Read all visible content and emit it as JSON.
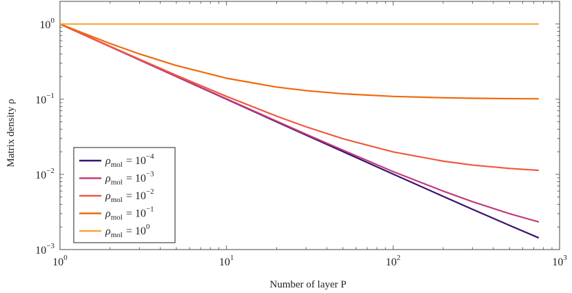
{
  "chart_data": {
    "type": "line",
    "xscale": "log",
    "yscale": "log",
    "xlim": [
      1,
      1000
    ],
    "ylim": [
      0.001,
      2
    ],
    "grid": false,
    "xlabel": "Number of layer P",
    "ylabel": "Matrix density ρ",
    "title": "",
    "x_ticks": [
      {
        "value": 1,
        "base": "10",
        "exp": "0"
      },
      {
        "value": 10,
        "base": "10",
        "exp": "1"
      },
      {
        "value": 100,
        "base": "10",
        "exp": "2"
      },
      {
        "value": 1000,
        "base": "10",
        "exp": "3"
      }
    ],
    "y_ticks": [
      {
        "value": 1,
        "base": "10",
        "exp": "0"
      },
      {
        "value": 0.1,
        "base": "10",
        "exp": "−1"
      },
      {
        "value": 0.01,
        "base": "10",
        "exp": "−2"
      },
      {
        "value": 0.001,
        "base": "10",
        "exp": "−3"
      }
    ],
    "legend_position": "bottom-left",
    "series": [
      {
        "name": "ρmol = 10^−4",
        "label_symbol": "ρ",
        "label_sub": "mol",
        "label_rhs": "= 10",
        "label_exp": "−4",
        "rho_mol": 0.0001,
        "color": "#3b0f70",
        "x": [
          1,
          2,
          3,
          5,
          10,
          20,
          30,
          50,
          100,
          200,
          300,
          500,
          750
        ],
        "y": [
          1,
          0.5,
          0.333,
          0.2,
          0.1,
          0.05,
          0.0334,
          0.0201,
          0.0101,
          0.0051,
          0.00343,
          0.0021,
          0.00143
        ]
      },
      {
        "name": "ρmol = 10^−3",
        "label_symbol": "ρ",
        "label_sub": "mol",
        "label_rhs": "= 10",
        "label_exp": "−3",
        "rho_mol": 0.001,
        "color": "#c33c7a",
        "x": [
          1,
          2,
          3,
          5,
          10,
          20,
          30,
          50,
          100,
          200,
          300,
          500,
          750
        ],
        "y": [
          1,
          0.5,
          0.334,
          0.201,
          0.101,
          0.051,
          0.0343,
          0.021,
          0.0109,
          0.00599,
          0.00433,
          0.003,
          0.00233
        ]
      },
      {
        "name": "ρmol = 10^−2",
        "label_symbol": "ρ",
        "label_sub": "mol",
        "label_rhs": "= 10",
        "label_exp": "−2",
        "rho_mol": 0.01,
        "color": "#f1573f",
        "x": [
          1,
          2,
          3,
          5,
          10,
          20,
          30,
          50,
          100,
          200,
          300,
          500,
          750
        ],
        "y": [
          1,
          0.505,
          0.34,
          0.208,
          0.109,
          0.0595,
          0.043,
          0.0298,
          0.0199,
          0.015,
          0.0133,
          0.012,
          0.0113
        ]
      },
      {
        "name": "ρmol = 10^−1",
        "label_symbol": "ρ",
        "label_sub": "mol",
        "label_rhs": "= 10",
        "label_exp": "−1",
        "rho_mol": 0.1,
        "color": "#f0690a",
        "x": [
          1,
          2,
          3,
          5,
          10,
          20,
          30,
          50,
          100,
          200,
          300,
          500,
          750
        ],
        "y": [
          1,
          0.55,
          0.4,
          0.28,
          0.19,
          0.145,
          0.13,
          0.118,
          0.109,
          0.1045,
          0.103,
          0.1018,
          0.1012
        ]
      },
      {
        "name": "ρmol = 10^0",
        "label_symbol": "ρ",
        "label_sub": "mol",
        "label_rhs": "= 10",
        "label_exp": "0",
        "rho_mol": 1,
        "color": "#fba238",
        "x": [
          1,
          750
        ],
        "y": [
          1,
          1
        ]
      }
    ]
  }
}
